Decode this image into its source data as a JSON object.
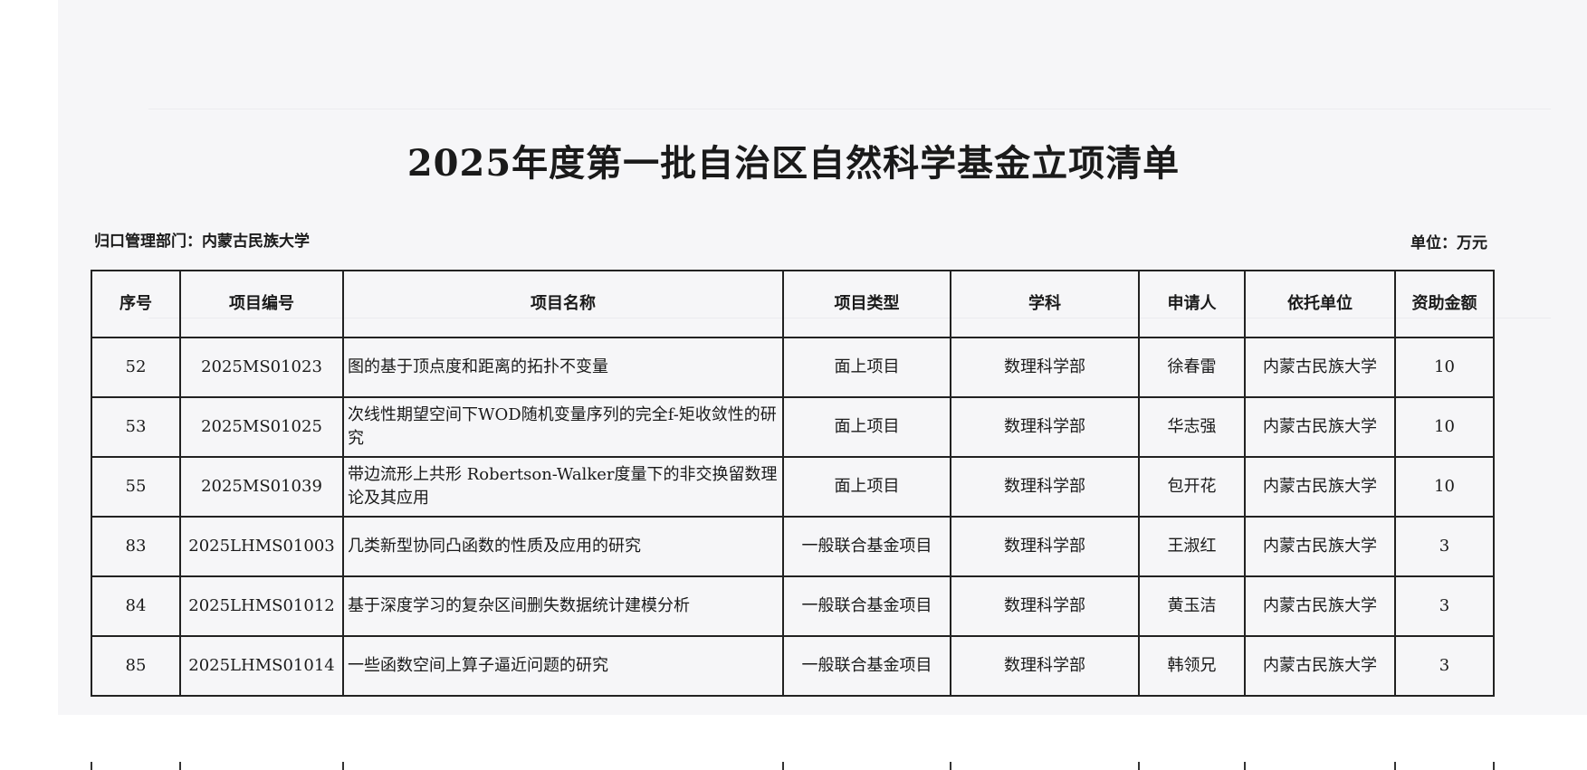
{
  "title": "2025年度第一批自治区自然科学基金立项清单",
  "department": "归口管理部门：内蒙古民族大学",
  "unit": "单位：万元",
  "table": {
    "headers": [
      "序号",
      "项目编号",
      "项目名称",
      "项目类型",
      "学科",
      "申请人",
      "依托单位",
      "资助金额"
    ],
    "rows": [
      [
        "52",
        "2025MS01023",
        "图的基于顶点度和距离的拓扑不变量",
        "面上项目",
        "数理科学部",
        "徐春雷",
        "内蒙古民族大学",
        "10"
      ],
      [
        "53",
        "2025MS01025",
        "次线性期望空间下WOD随机变量序列的完全f-矩收敛性的研究",
        "面上项目",
        "数理科学部",
        "华志强",
        "内蒙古民族大学",
        "10"
      ],
      [
        "55",
        "2025MS01039",
        "带边流形上共形 Robertson-Walker度量下的非交换留数理论及其应用",
        "面上项目",
        "数理科学部",
        "包开花",
        "内蒙古民族大学",
        "10"
      ],
      [
        "83",
        "2025LHMS01003",
        "几类新型协同凸函数的性质及应用的研究",
        "一般联合基金项目",
        "数理科学部",
        "王淑红",
        "内蒙古民族大学",
        "3"
      ],
      [
        "84",
        "2025LHMS01012",
        "基于深度学习的复杂区间删失数据统计建模分析",
        "一般联合基金项目",
        "数理科学部",
        "黄玉洁",
        "内蒙古民族大学",
        "3"
      ],
      [
        "85",
        "2025LHMS01014",
        "一些函数空间上算子逼近问题的研究",
        "一般联合基金项目",
        "数理科学部",
        "韩领兄",
        "内蒙古民族大学",
        "3"
      ]
    ]
  }
}
